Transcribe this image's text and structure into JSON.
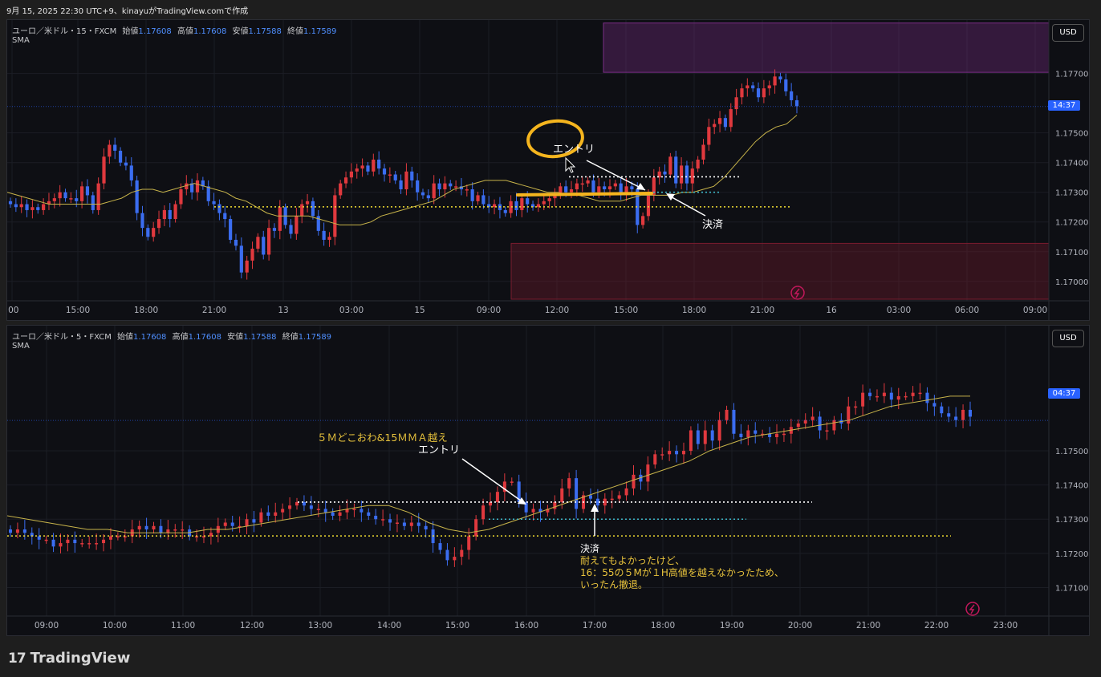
{
  "header": {
    "caption": "9月 15, 2025 22:30 UTC+9、kinayuがTradingView.comで作成"
  },
  "brand": {
    "name": "TradingView",
    "mark": "17"
  },
  "colors": {
    "up": "#e0393e",
    "down": "#3b6df0",
    "sma": "#c8b44a",
    "accent": "#2962ff",
    "supply_zone": "#7a2e86",
    "demand_zone": "#7a1c2f",
    "highlight": "#f5b51e"
  },
  "panes": [
    {
      "id": "15m",
      "legend": {
        "symbol": "ユーロ／米ドル・15・FXCM",
        "open_label": "始値",
        "open": "1.17608",
        "high_label": "高値",
        "high": "1.17608",
        "low_label": "安値",
        "low": "1.17588",
        "close_label": "終値",
        "close": "1.17589",
        "indicator": "SMA"
      },
      "currency": "USD",
      "last_price_label": "14:37",
      "chart_data": {
        "type": "candlestick",
        "symbol": "EURUSD 15",
        "ylim": [
          1.1694,
          1.1788
        ],
        "y_ticks": [
          "1.17700",
          "1.17500",
          "1.17400",
          "1.17300",
          "1.17200",
          "1.17100",
          "1.17000"
        ],
        "x_ticks": [
          ":00",
          "15:00",
          "18:00",
          "21:00",
          "13",
          "03:00",
          "15",
          "09:00",
          "12:00",
          "15:00",
          "18:00",
          "21:00",
          "16",
          "03:00",
          "06:00",
          "09:00"
        ],
        "candles_close": [
          1.1726,
          1.1725,
          1.1726,
          1.1724,
          1.1725,
          1.1724,
          1.1726,
          1.1727,
          1.1728,
          1.173,
          1.1728,
          1.1728,
          1.1727,
          1.1732,
          1.1729,
          1.1724,
          1.1733,
          1.1742,
          1.1746,
          1.1744,
          1.174,
          1.1739,
          1.1734,
          1.1723,
          1.1718,
          1.1715,
          1.1718,
          1.1721,
          1.1724,
          1.1721,
          1.1726,
          1.1731,
          1.1733,
          1.173,
          1.1734,
          1.1732,
          1.1727,
          1.1726,
          1.1723,
          1.1721,
          1.1714,
          1.1712,
          1.1703,
          1.1707,
          1.1711,
          1.1715,
          1.1709,
          1.1718,
          1.1717,
          1.1725,
          1.1719,
          1.1716,
          1.1722,
          1.1726,
          1.1727,
          1.1722,
          1.1717,
          1.1714,
          1.1715,
          1.1729,
          1.1733,
          1.1735,
          1.1737,
          1.1738,
          1.1739,
          1.1737,
          1.1741,
          1.1738,
          1.1736,
          1.1736,
          1.1734,
          1.1731,
          1.1737,
          1.1734,
          1.173,
          1.1729,
          1.1728,
          1.1733,
          1.1731,
          1.1733,
          1.1732,
          1.1732,
          1.1731,
          1.1731,
          1.1727,
          1.1729,
          1.1726,
          1.1725,
          1.1726,
          1.1724,
          1.1723,
          1.1727,
          1.1724,
          1.1728,
          1.1726,
          1.1725,
          1.1726,
          1.1727,
          1.1728,
          1.1729,
          1.1732,
          1.173,
          1.1731,
          1.1733,
          1.1733,
          1.1734,
          1.173,
          1.1732,
          1.1731,
          1.1732,
          1.1733,
          1.1729,
          1.1732,
          1.1731,
          1.1719,
          1.1722,
          1.1729,
          1.1735,
          1.1737,
          1.1736,
          1.1742,
          1.1733,
          1.1739,
          1.1733,
          1.1738,
          1.1741,
          1.1746,
          1.1752,
          1.1753,
          1.1755,
          1.1752,
          1.1758,
          1.1762,
          1.1765,
          1.1766,
          1.1765,
          1.1762,
          1.1765,
          1.1766,
          1.1769,
          1.1768,
          1.1764,
          1.1761,
          1.1759
        ],
        "sma_values": [
          1.173,
          1.1729,
          1.1728,
          1.1727,
          1.1726,
          1.1726,
          1.1726,
          1.1726,
          1.1726,
          1.1726,
          1.1727,
          1.1728,
          1.173,
          1.1731,
          1.1731,
          1.173,
          1.1731,
          1.1732,
          1.1733,
          1.1732,
          1.1731,
          1.173,
          1.1728,
          1.1727,
          1.1725,
          1.1723,
          1.1722,
          1.1722,
          1.1722,
          1.1722,
          1.1721,
          1.172,
          1.1719,
          1.1719,
          1.1719,
          1.172,
          1.1722,
          1.1723,
          1.1724,
          1.1725,
          1.1726,
          1.1727,
          1.1729,
          1.1731,
          1.1732,
          1.1733,
          1.1734,
          1.1734,
          1.1734,
          1.1733,
          1.1732,
          1.1731,
          1.173,
          1.173,
          1.1729,
          1.1729,
          1.1728,
          1.1727,
          1.1727,
          1.1727,
          1.1728,
          1.1729,
          1.1729,
          1.1729,
          1.1729,
          1.173,
          1.173,
          1.1731,
          1.1732,
          1.1735,
          1.1739,
          1.1743,
          1.1747,
          1.175,
          1.1752,
          1.1753,
          1.1756
        ],
        "levels": [
          {
            "name": "white-dotted",
            "value": 1.17352
          },
          {
            "name": "cyan-dotted",
            "value": 1.173
          },
          {
            "name": "yellow-dotted",
            "value": 1.17251
          },
          {
            "name": "last-price",
            "value": 1.17589
          }
        ],
        "zones": [
          {
            "name": "supply-zone",
            "from": 1.17704,
            "to": 1.1787
          },
          {
            "name": "demand-zone",
            "from": 1.1694,
            "to": 1.17128
          }
        ],
        "annotations": [
          {
            "text": "エントリ",
            "color": "#ffffff"
          },
          {
            "text": "決済",
            "color": "#ffffff"
          }
        ]
      }
    },
    {
      "id": "5m",
      "legend": {
        "symbol": "ユーロ／米ドル・5・FXCM",
        "open_label": "始値",
        "open": "1.17608",
        "high_label": "高値",
        "high": "1.17608",
        "low_label": "安値",
        "low": "1.17588",
        "close_label": "終値",
        "close": "1.17589",
        "indicator": "SMA"
      },
      "currency": "USD",
      "last_price_label": "04:37",
      "chart_data": {
        "type": "candlestick",
        "symbol": "EURUSD 5",
        "ylim": [
          1.1704,
          1.1781
        ],
        "y_ticks": [
          "1.17500",
          "1.17400",
          "1.17300",
          "1.17200",
          "1.17100"
        ],
        "x_ticks": [
          "09:00",
          "10:00",
          "11:00",
          "12:00",
          "13:00",
          "14:00",
          "15:00",
          "16:00",
          "17:00",
          "18:00",
          "19:00",
          "20:00",
          "21:00",
          "22:00",
          "23:00"
        ],
        "candles_close": [
          1.1726,
          1.1727,
          1.1726,
          1.1725,
          1.1724,
          1.1724,
          1.1722,
          1.1723,
          1.1724,
          1.1723,
          1.1723,
          1.1723,
          1.1723,
          1.1724,
          1.1725,
          1.1725,
          1.1725,
          1.1727,
          1.1728,
          1.1727,
          1.1728,
          1.1726,
          1.1727,
          1.1727,
          1.1727,
          1.1725,
          1.1725,
          1.1725,
          1.1726,
          1.1728,
          1.1729,
          1.1728,
          1.1728,
          1.173,
          1.1729,
          1.1732,
          1.1731,
          1.1732,
          1.1733,
          1.1734,
          1.1735,
          1.1734,
          1.1733,
          1.1733,
          1.1732,
          1.1731,
          1.1732,
          1.1733,
          1.1733,
          1.1732,
          1.1731,
          1.173,
          1.173,
          1.1729,
          1.1729,
          1.1728,
          1.1729,
          1.1728,
          1.1727,
          1.1723,
          1.1721,
          1.1718,
          1.1719,
          1.1721,
          1.1725,
          1.173,
          1.1734,
          1.1735,
          1.1738,
          1.1741,
          1.1741,
          1.1735,
          1.1732,
          1.1733,
          1.1732,
          1.1733,
          1.1735,
          1.1739,
          1.1742,
          1.1733,
          1.1737,
          1.1736,
          1.1734,
          1.1736,
          1.1736,
          1.1737,
          1.1739,
          1.1743,
          1.1741,
          1.1746,
          1.1749,
          1.1749,
          1.175,
          1.1749,
          1.175,
          1.1756,
          1.1752,
          1.1756,
          1.1753,
          1.1759,
          1.1762,
          1.1755,
          1.1754,
          1.1756,
          1.1755,
          1.1755,
          1.1754,
          1.1755,
          1.1755,
          1.1757,
          1.1758,
          1.1759,
          1.176,
          1.1756,
          1.1756,
          1.1759,
          1.1758,
          1.1763,
          1.1763,
          1.1767,
          1.1766,
          1.1766,
          1.1767,
          1.1765,
          1.1766,
          1.1766,
          1.1767,
          1.1767,
          1.1764,
          1.1763,
          1.1761,
          1.176,
          1.1759,
          1.1762,
          1.176
        ],
        "sma_values": [
          1.1731,
          1.173,
          1.1729,
          1.1728,
          1.1727,
          1.1727,
          1.1726,
          1.1726,
          1.1726,
          1.1726,
          1.1727,
          1.1727,
          1.1728,
          1.1729,
          1.173,
          1.1731,
          1.1732,
          1.1733,
          1.1734,
          1.1734,
          1.1732,
          1.1729,
          1.1727,
          1.1726,
          1.1727,
          1.1729,
          1.1731,
          1.1733,
          1.1735,
          1.1737,
          1.1739,
          1.1741,
          1.1743,
          1.1745,
          1.1747,
          1.175,
          1.1752,
          1.1754,
          1.1755,
          1.1756,
          1.1757,
          1.1758,
          1.1759,
          1.1761,
          1.1763,
          1.1764,
          1.1765,
          1.1766,
          1.1766
        ],
        "levels": [
          {
            "name": "white-dotted",
            "value": 1.1735
          },
          {
            "name": "cyan-dotted",
            "value": 1.173
          },
          {
            "name": "yellow-dotted",
            "value": 1.17251
          },
          {
            "name": "last-price",
            "value": 1.17589
          }
        ],
        "annotations": [
          {
            "text": "５Ｍどこおわ&15ＭＭＡ越え",
            "color": "#e8c33c"
          },
          {
            "text": "エントリ",
            "color": "#ffffff"
          },
          {
            "text": "決済",
            "color": "#ffffff"
          },
          {
            "text": "耐えてもよかったけど、",
            "color": "#e8c33c"
          },
          {
            "text": "16：55の５Mが１H高値を越えなかったため、",
            "color": "#e8c33c"
          },
          {
            "text": "いったん撤退。",
            "color": "#e8c33c"
          }
        ]
      }
    }
  ]
}
